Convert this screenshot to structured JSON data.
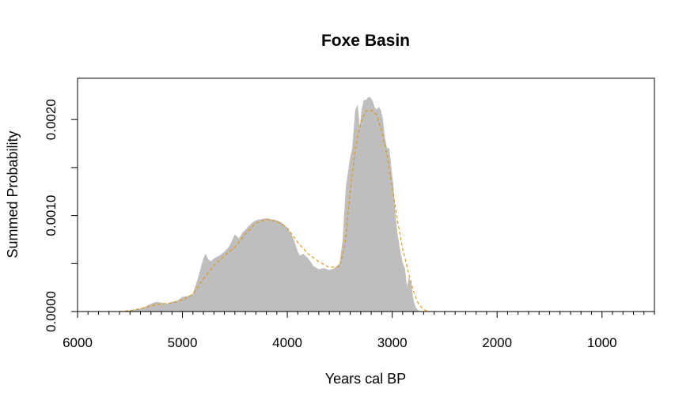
{
  "chart_data": {
    "type": "area",
    "title": "Foxe Basin",
    "xlabel": "Years cal BP",
    "ylabel": "Summed Probability",
    "xlim": [
      6000,
      500
    ],
    "ylim": [
      0,
      0.00243
    ],
    "x_reversed": true,
    "x_major_ticks": [
      6000,
      5000,
      4000,
      3000,
      2000,
      1000
    ],
    "x_major_tick_labels": [
      "6000",
      "5000",
      "4000",
      "3000",
      "2000",
      "1000"
    ],
    "x_minor_tick_step": 100,
    "y_ticks": [
      0,
      0.0005,
      0.001,
      0.0015,
      0.002
    ],
    "y_tick_labels": [
      "0.0000",
      "",
      "0.0010",
      "",
      "0.0020"
    ],
    "grid": false,
    "legend": "none",
    "colors": {
      "fill": "#bebebe",
      "smooth": "#e69500",
      "axis": "#000000"
    },
    "series": [
      {
        "kind": "filled-area",
        "x": [
          5550,
          5500,
          5450,
          5400,
          5350,
          5300,
          5250,
          5200,
          5150,
          5100,
          5050,
          5000,
          4950,
          4900,
          4850,
          4800,
          4780,
          4760,
          4730,
          4700,
          4650,
          4600,
          4550,
          4500,
          4460,
          4420,
          4400,
          4350,
          4300,
          4250,
          4200,
          4150,
          4100,
          4050,
          4000,
          3950,
          3900,
          3880,
          3850,
          3800,
          3750,
          3700,
          3650,
          3600,
          3550,
          3500,
          3470,
          3440,
          3400,
          3380,
          3350,
          3330,
          3310,
          3290,
          3270,
          3250,
          3230,
          3210,
          3190,
          3170,
          3150,
          3130,
          3110,
          3090,
          3070,
          3050,
          3030,
          3010,
          2990,
          2970,
          2950,
          2920,
          2900,
          2880,
          2860,
          2840,
          2820,
          2800,
          2780,
          2760,
          2740
        ],
        "y": [
          0.0,
          1e-05,
          2e-05,
          3e-05,
          5e-05,
          8e-05,
          0.0001,
          9e-05,
          8e-05,
          0.0001,
          0.00011,
          0.00015,
          0.00016,
          0.00018,
          0.00035,
          0.00055,
          0.0006,
          0.00055,
          0.00052,
          0.00055,
          0.00058,
          0.00062,
          0.00068,
          0.0008,
          0.00076,
          0.00083,
          0.00085,
          0.00091,
          0.00095,
          0.00096,
          0.00097,
          0.00096,
          0.00095,
          0.00092,
          0.00087,
          0.00078,
          0.00062,
          0.00058,
          0.0006,
          0.00055,
          0.00047,
          0.00044,
          0.00045,
          0.00043,
          0.00045,
          0.0005,
          0.00075,
          0.0013,
          0.0016,
          0.0017,
          0.0021,
          0.00215,
          0.0019,
          0.0021,
          0.0022,
          0.0022,
          0.00223,
          0.00223,
          0.0022,
          0.00213,
          0.0021,
          0.00213,
          0.0021,
          0.002,
          0.0018,
          0.0017,
          0.0017,
          0.0015,
          0.0013,
          0.001,
          0.0008,
          0.0006,
          0.0005,
          0.00045,
          0.00025,
          0.00035,
          0.0003,
          0.00012,
          5e-05,
          2e-05,
          0.0
        ]
      },
      {
        "kind": "smoothed-dashed-line",
        "x": [
          5600,
          5500,
          5400,
          5300,
          5200,
          5100,
          5000,
          4900,
          4800,
          4700,
          4600,
          4500,
          4400,
          4300,
          4200,
          4100,
          4000,
          3900,
          3800,
          3700,
          3600,
          3500,
          3450,
          3400,
          3350,
          3300,
          3250,
          3200,
          3150,
          3100,
          3050,
          3000,
          2950,
          2900,
          2850,
          2800,
          2750,
          2700,
          2650
        ],
        "y": [
          0.0,
          1e-05,
          3e-05,
          6e-05,
          8e-05,
          9e-05,
          0.00012,
          0.00018,
          0.00034,
          0.00048,
          0.00058,
          0.00067,
          0.00081,
          0.00092,
          0.00096,
          0.00094,
          0.00087,
          0.00072,
          0.0006,
          0.00052,
          0.00046,
          0.00047,
          0.0007,
          0.00125,
          0.0017,
          0.00197,
          0.00209,
          0.0021,
          0.00205,
          0.00188,
          0.00163,
          0.0013,
          0.00095,
          0.00065,
          0.00043,
          0.00022,
          8e-05,
          2e-05,
          0.0
        ]
      }
    ]
  }
}
